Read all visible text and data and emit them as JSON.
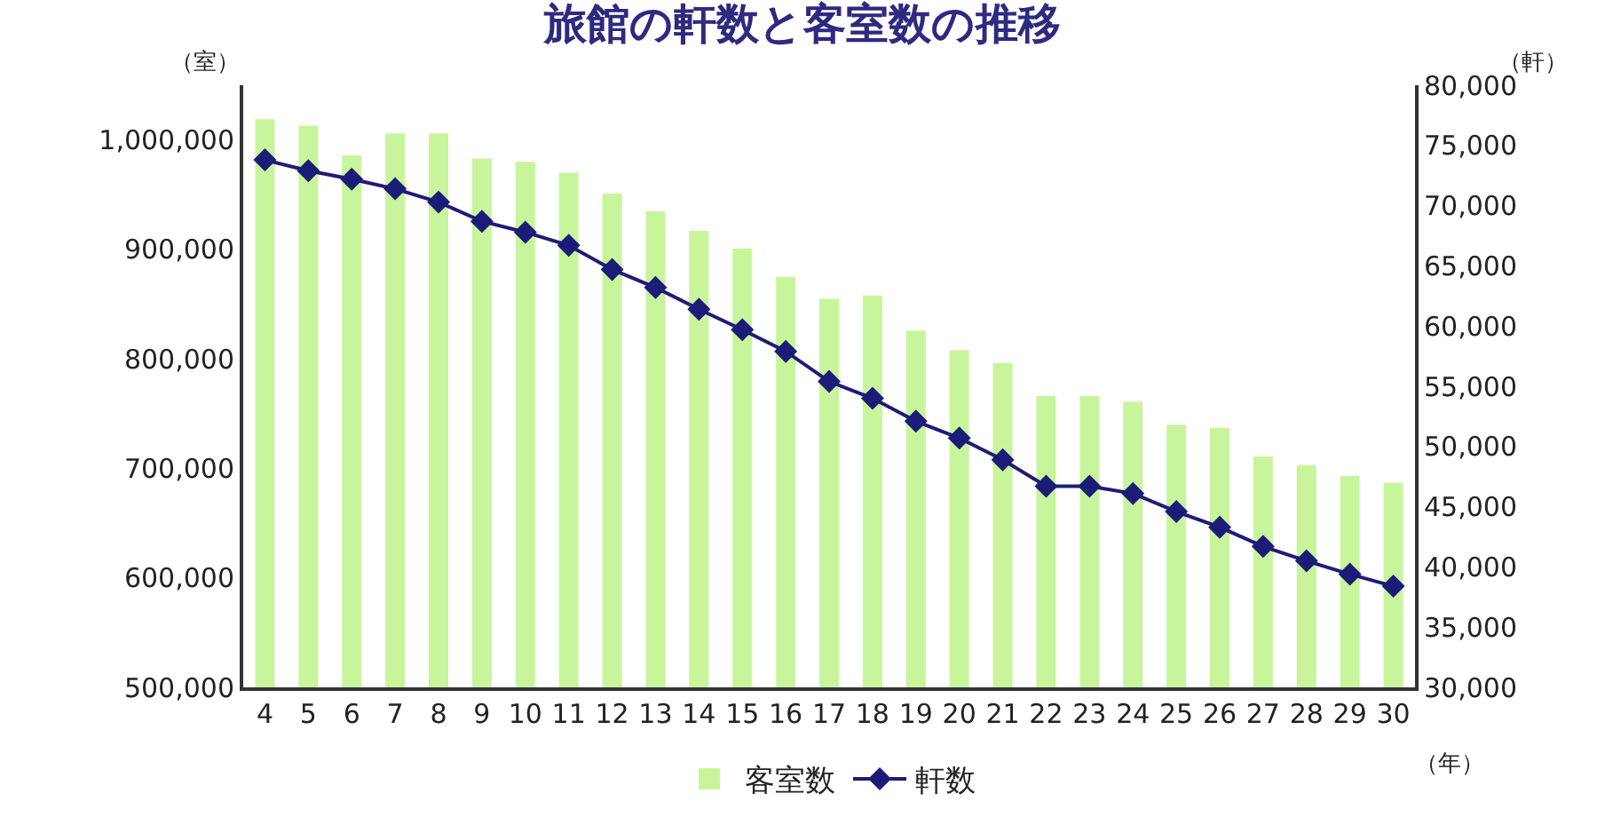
{
  "chart_data": {
    "type": "bar",
    "title": "旅館の軒数と客室数の推移",
    "xlabel": "（年）",
    "ylabel": "（室）",
    "y2label": "（軒）",
    "categories": [
      "4",
      "5",
      "6",
      "7",
      "8",
      "9",
      "10",
      "11",
      "12",
      "13",
      "14",
      "15",
      "16",
      "17",
      "18",
      "19",
      "20",
      "21",
      "22",
      "23",
      "24",
      "25",
      "26",
      "27",
      "28",
      "29",
      "30"
    ],
    "series": [
      {
        "name": "客室数",
        "color": "#c8f59c",
        "values": [
          1019000,
          1013000,
          986000,
          1006000,
          1006000,
          983000,
          980000,
          970000,
          951000,
          935000,
          917000,
          901000,
          875000,
          855000,
          858000,
          826000,
          808000,
          796000,
          766000,
          766000,
          761000,
          740000,
          737000,
          711000,
          703000,
          693000,
          687000
        ]
      },
      {
        "name": "軒数",
        "type": "line",
        "axis": "y2",
        "color": "#1c1c78",
        "marker": "diamond",
        "values": [
          73800,
          72900,
          72200,
          71400,
          70300,
          68700,
          67800,
          66700,
          64700,
          63200,
          61400,
          59700,
          57900,
          55400,
          54000,
          52100,
          50700,
          48900,
          46700,
          46700,
          46100,
          44600,
          43300,
          41700,
          40500,
          39400,
          38400
        ]
      }
    ],
    "ylim": [
      500000,
      1050000
    ],
    "yticks": [
      {
        "value": 500000,
        "label": "500,000"
      },
      {
        "value": 600000,
        "label": "600,000"
      },
      {
        "value": 700000,
        "label": "700,000"
      },
      {
        "value": 800000,
        "label": "800,000"
      },
      {
        "value": 900000,
        "label": "900,000"
      },
      {
        "value": 1000000,
        "label": "1,000,000"
      }
    ],
    "y2lim": [
      30000,
      80000
    ],
    "y2ticks": [
      {
        "value": 30000,
        "label": "30,000"
      },
      {
        "value": 35000,
        "label": "35,000"
      },
      {
        "value": 40000,
        "label": "40,000"
      },
      {
        "value": 45000,
        "label": "45,000"
      },
      {
        "value": 50000,
        "label": "50,000"
      },
      {
        "value": 55000,
        "label": "55,000"
      },
      {
        "value": 60000,
        "label": "60,000"
      },
      {
        "value": 65000,
        "label": "65,000"
      },
      {
        "value": 70000,
        "label": "70,000"
      },
      {
        "value": 75000,
        "label": "75,000"
      },
      {
        "value": 80000,
        "label": "80,000"
      }
    ],
    "grid": false,
    "legend": "bottom"
  }
}
